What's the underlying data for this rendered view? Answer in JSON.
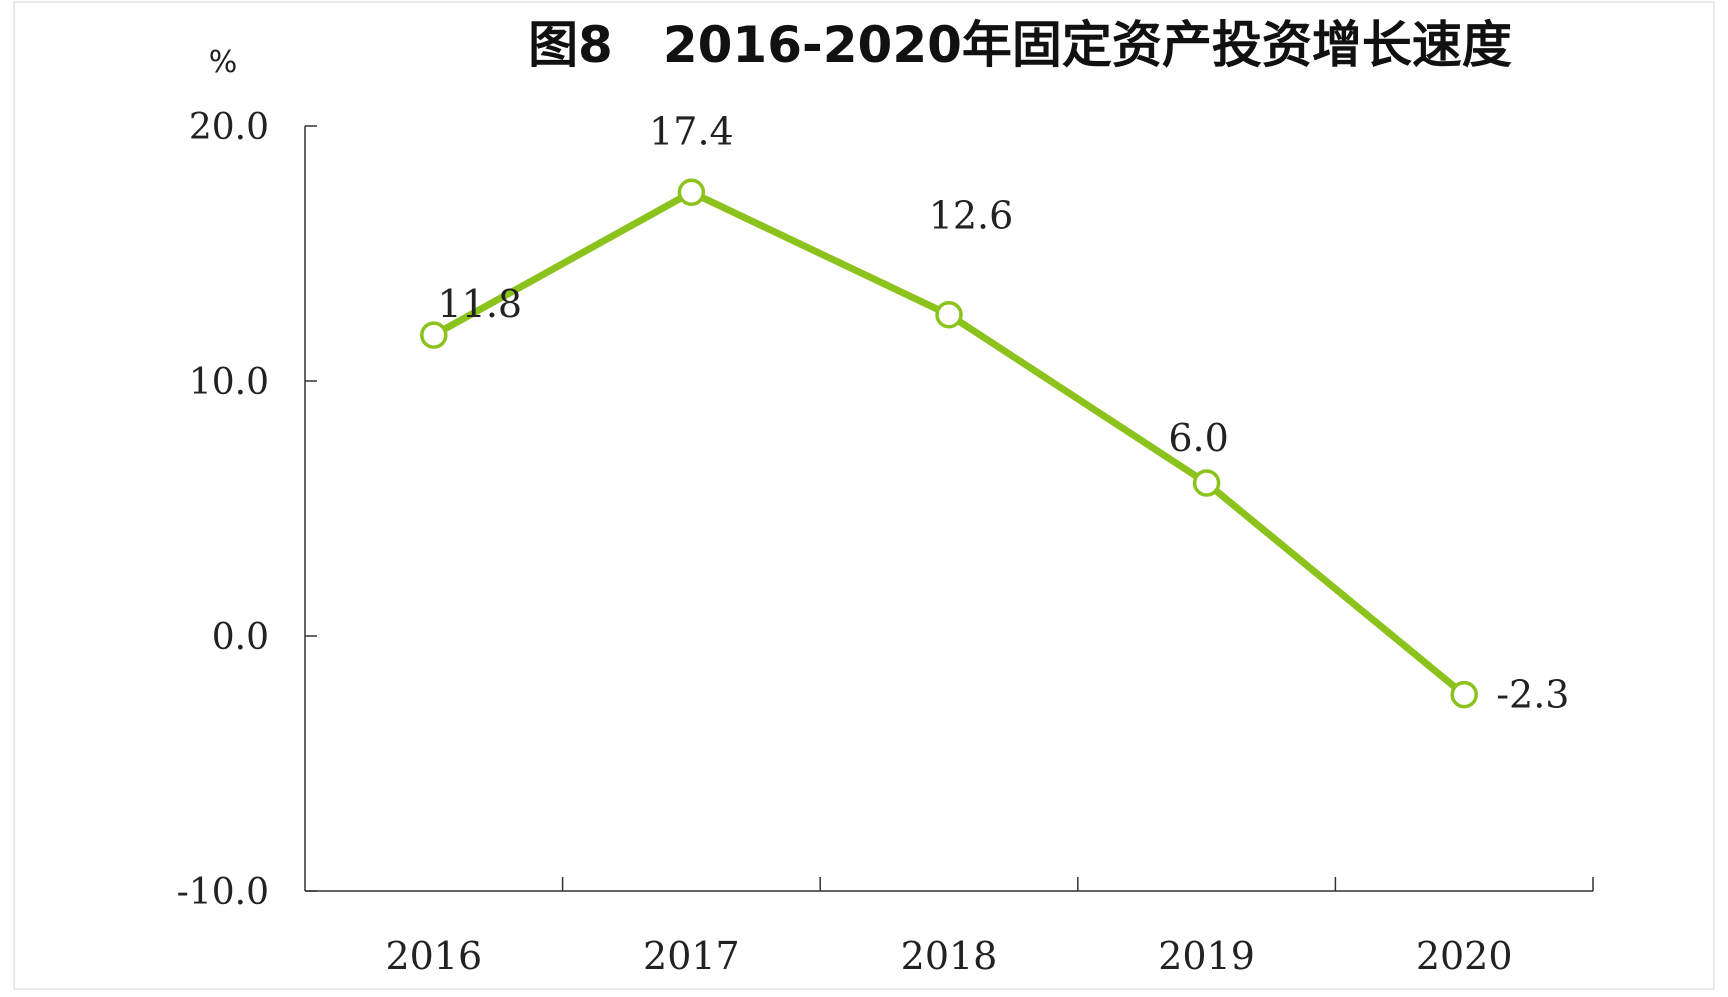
{
  "chart_data": {
    "type": "line",
    "title": "图8　2016-2020年固定资产投资增长速度",
    "ylabel": "%",
    "xlabel": "",
    "categories": [
      "2016",
      "2017",
      "2018",
      "2019",
      "2020"
    ],
    "series": [
      {
        "values": [
          11.8,
          17.4,
          12.6,
          6.0,
          -2.3
        ]
      }
    ],
    "data_labels": [
      "11.8",
      "17.4",
      "12.6",
      "6.0",
      "-2.3"
    ],
    "ylim": [
      -10.0,
      20.0
    ],
    "yticks": [
      -10.0,
      0.0,
      10.0,
      20.0
    ],
    "ytick_labels": [
      "-10.0",
      "0.0",
      "10.0",
      "20.0"
    ],
    "grid": false,
    "legend": "none",
    "line_color": "#8cc21c"
  }
}
